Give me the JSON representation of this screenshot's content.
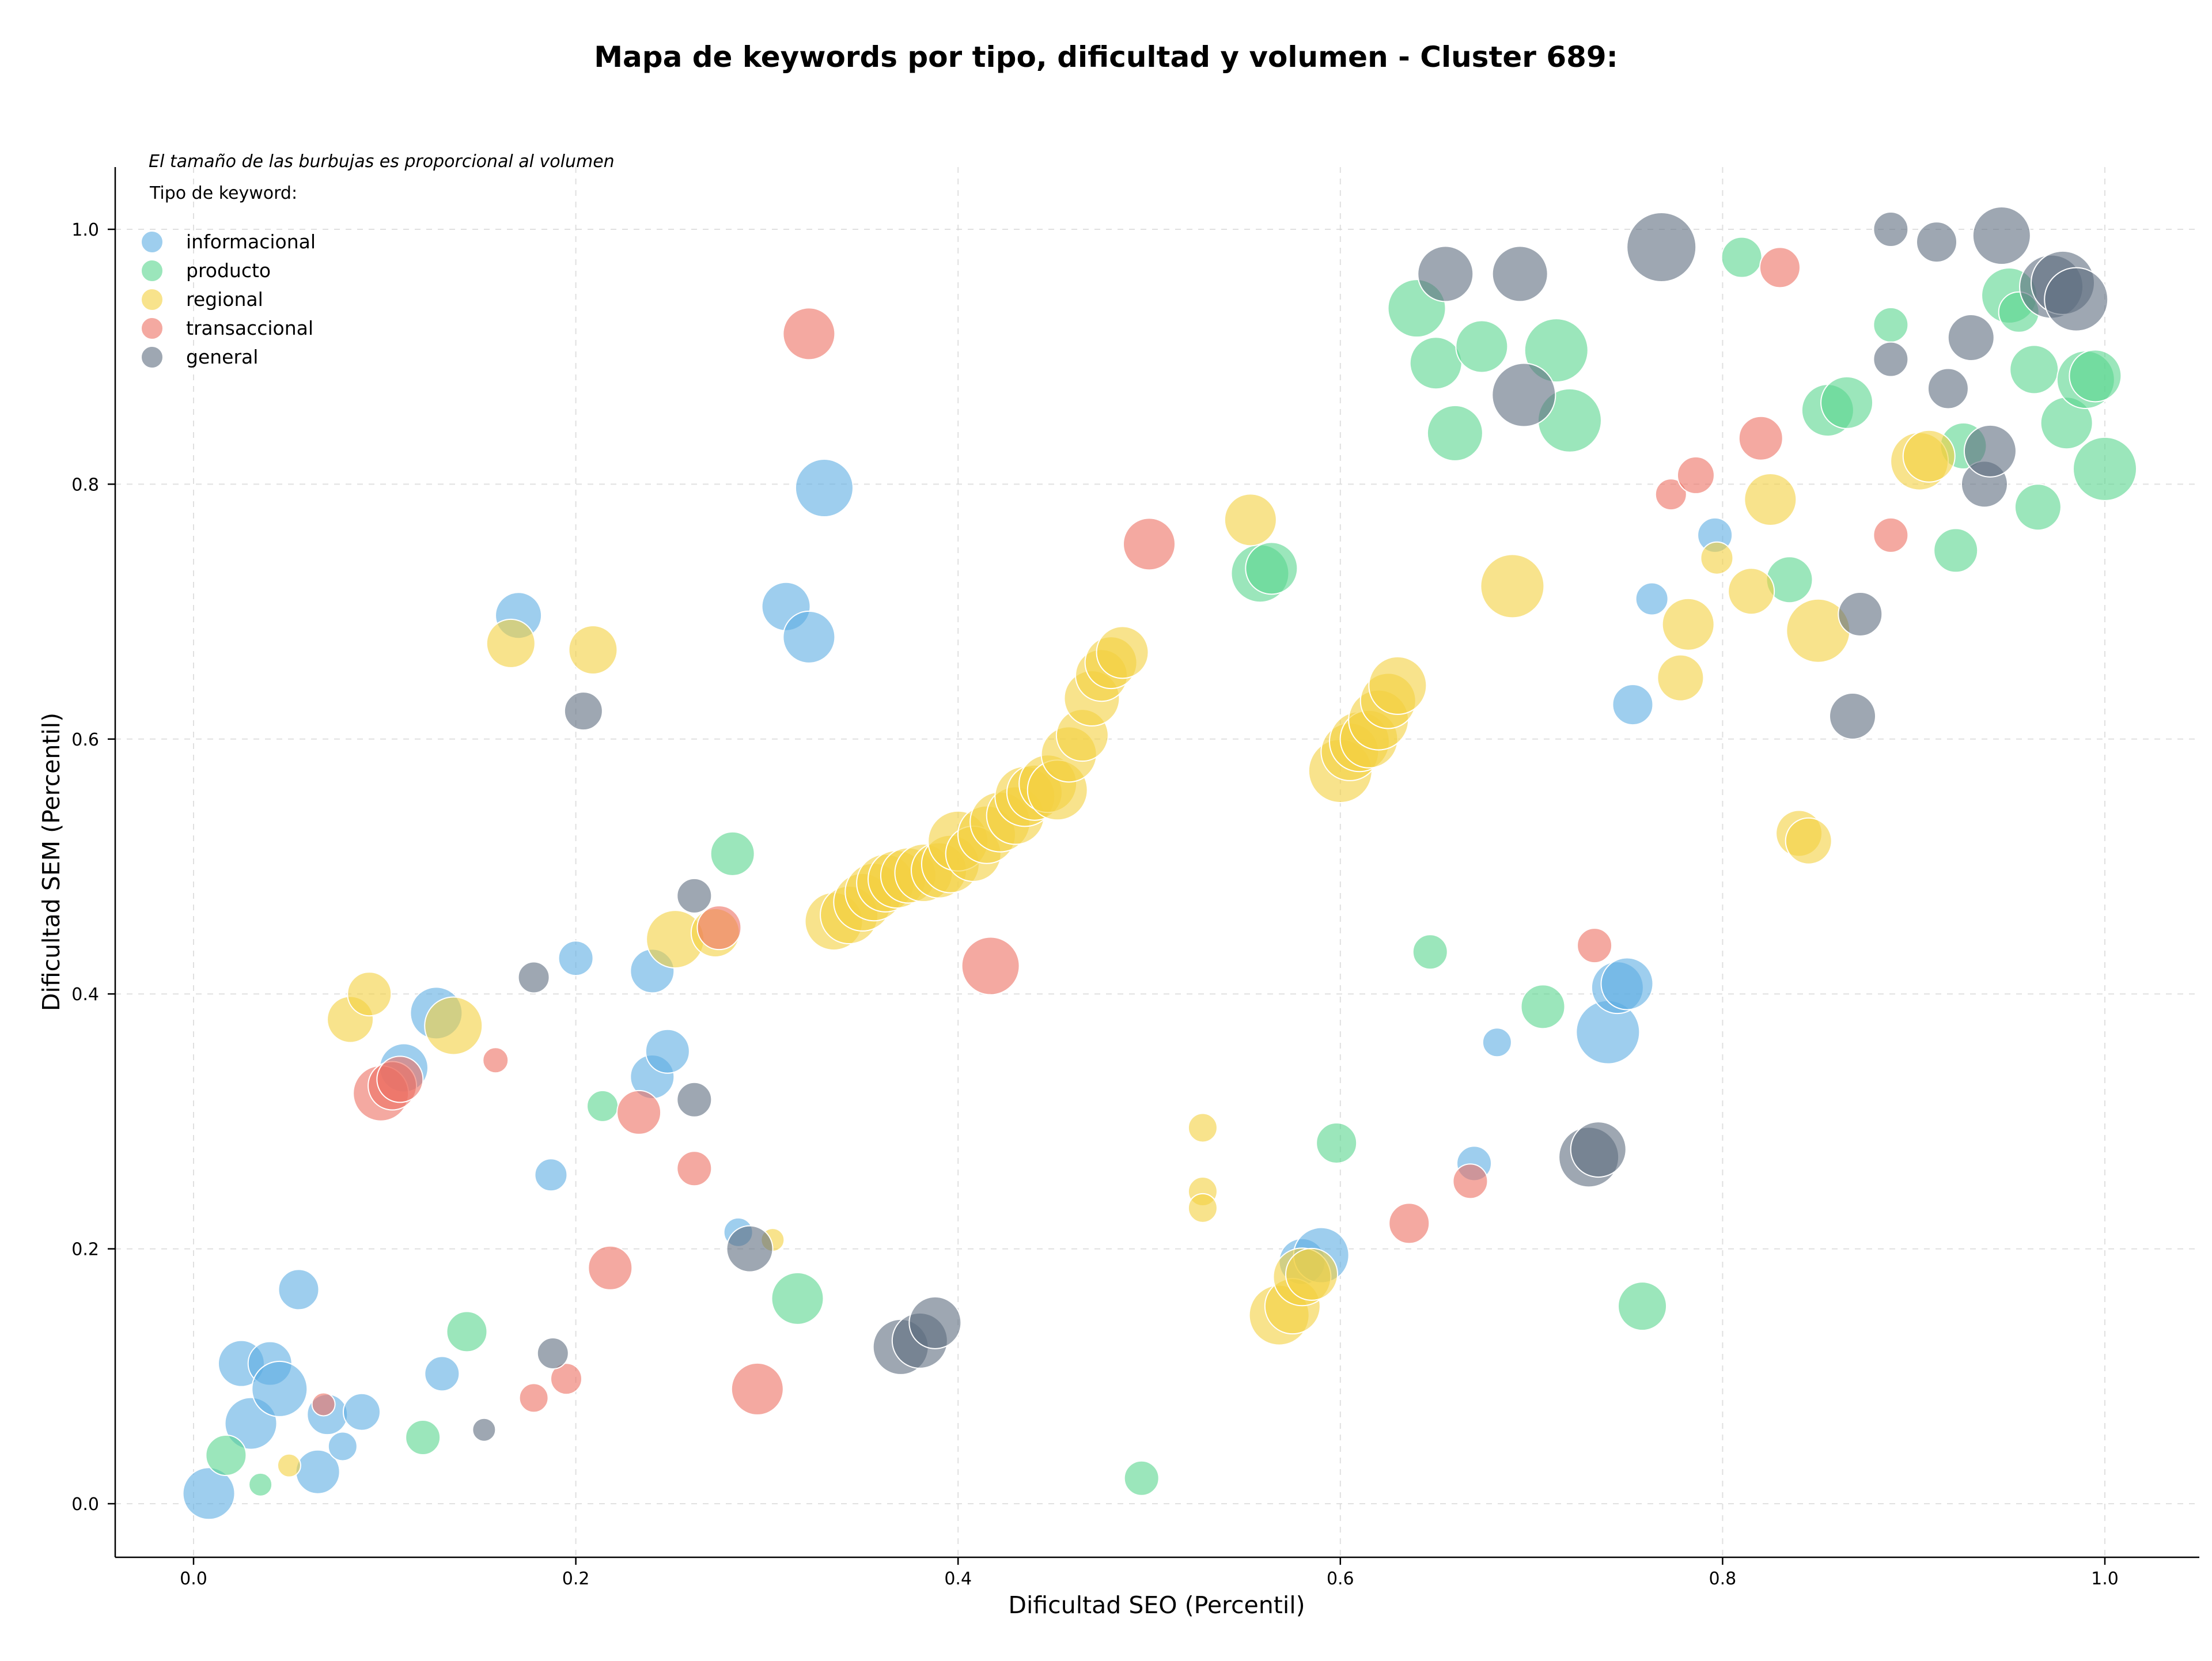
{
  "chart_data": {
    "type": "scatter",
    "title": "Mapa de keywords por tipo, dificultad y volumen - Cluster 689:",
    "xlabel": "Dificultad SEO (Percentil)",
    "ylabel": "Dificultad SEM (Percentil)",
    "xlim": [
      -0.04,
      1.05
    ],
    "ylim": [
      -0.04,
      1.05
    ],
    "xticks": [
      "0.0",
      "0.2",
      "0.4",
      "0.6",
      "0.8",
      "1.0"
    ],
    "yticks": [
      "0.0",
      "0.2",
      "0.4",
      "0.6",
      "0.8",
      "1.0"
    ],
    "grid": true,
    "note": "El tamaño de las burbujas es proporcional al volumen",
    "legend": {
      "title": "Tipo de keyword:",
      "position": "top-left",
      "entries": [
        "informacional",
        "producto",
        "regional",
        "transaccional",
        "general"
      ]
    },
    "series": [
      {
        "name": "informacional",
        "color": "#5dade2",
        "points": [
          [
            0.008,
            0.008,
            45
          ],
          [
            0.025,
            0.11,
            40
          ],
          [
            0.03,
            0.063,
            45
          ],
          [
            0.04,
            0.11,
            38
          ],
          [
            0.045,
            0.09,
            48
          ],
          [
            0.055,
            0.168,
            35
          ],
          [
            0.065,
            0.025,
            38
          ],
          [
            0.07,
            0.07,
            35
          ],
          [
            0.078,
            0.045,
            25
          ],
          [
            0.088,
            0.072,
            32
          ],
          [
            0.13,
            0.102,
            30
          ],
          [
            0.11,
            0.342,
            42
          ],
          [
            0.127,
            0.385,
            45
          ],
          [
            0.17,
            0.697,
            40
          ],
          [
            0.187,
            0.258,
            28
          ],
          [
            0.2,
            0.428,
            30
          ],
          [
            0.24,
            0.418,
            38
          ],
          [
            0.24,
            0.335,
            38
          ],
          [
            0.248,
            0.355,
            38
          ],
          [
            0.285,
            0.213,
            25
          ],
          [
            0.31,
            0.704,
            42
          ],
          [
            0.322,
            0.68,
            45
          ],
          [
            0.33,
            0.797,
            50
          ],
          [
            0.58,
            0.19,
            40
          ],
          [
            0.59,
            0.195,
            48
          ],
          [
            0.67,
            0.267,
            30
          ],
          [
            0.682,
            0.362,
            25
          ],
          [
            0.74,
            0.37,
            55
          ],
          [
            0.745,
            0.405,
            45
          ],
          [
            0.75,
            0.408,
            45
          ],
          [
            0.753,
            0.627,
            35
          ],
          [
            0.763,
            0.71,
            28
          ],
          [
            0.796,
            0.76,
            30
          ]
        ]
      },
      {
        "name": "producto",
        "color": "#58d68d",
        "points": [
          [
            0.017,
            0.038,
            35
          ],
          [
            0.035,
            0.015,
            20
          ],
          [
            0.12,
            0.052,
            30
          ],
          [
            0.143,
            0.135,
            35
          ],
          [
            0.214,
            0.312,
            27
          ],
          [
            0.282,
            0.51,
            38
          ],
          [
            0.316,
            0.161,
            45
          ],
          [
            0.496,
            0.02,
            30
          ],
          [
            0.558,
            0.73,
            50
          ],
          [
            0.564,
            0.734,
            45
          ],
          [
            0.598,
            0.283,
            35
          ],
          [
            0.64,
            0.938,
            50
          ],
          [
            0.65,
            0.895,
            45
          ],
          [
            0.66,
            0.84,
            48
          ],
          [
            0.674,
            0.908,
            45
          ],
          [
            0.647,
            0.433,
            30
          ],
          [
            0.706,
            0.39,
            38
          ],
          [
            0.713,
            0.905,
            55
          ],
          [
            0.72,
            0.85,
            55
          ],
          [
            0.758,
            0.155,
            42
          ],
          [
            0.81,
            0.978,
            35
          ],
          [
            0.835,
            0.725,
            40
          ],
          [
            0.855,
            0.858,
            45
          ],
          [
            0.865,
            0.864,
            45
          ],
          [
            0.888,
            0.925,
            30
          ],
          [
            0.922,
            0.748,
            38
          ],
          [
            0.926,
            0.83,
            40
          ],
          [
            0.95,
            0.948,
            48
          ],
          [
            0.955,
            0.935,
            35
          ],
          [
            0.963,
            0.89,
            42
          ],
          [
            0.965,
            0.782,
            40
          ],
          [
            0.98,
            0.848,
            45
          ],
          [
            0.99,
            0.882,
            50
          ],
          [
            0.995,
            0.885,
            45
          ],
          [
            1.0,
            0.812,
            55
          ]
        ]
      },
      {
        "name": "regional",
        "color": "#f4d03f",
        "points": [
          [
            0.05,
            0.03,
            20
          ],
          [
            0.082,
            0.38,
            40
          ],
          [
            0.092,
            0.4,
            38
          ],
          [
            0.136,
            0.375,
            50
          ],
          [
            0.166,
            0.675,
            42
          ],
          [
            0.209,
            0.67,
            42
          ],
          [
            0.252,
            0.443,
            50
          ],
          [
            0.273,
            0.448,
            42
          ],
          [
            0.303,
            0.207,
            20
          ],
          [
            0.335,
            0.457,
            50
          ],
          [
            0.343,
            0.462,
            50
          ],
          [
            0.35,
            0.472,
            50
          ],
          [
            0.356,
            0.48,
            50
          ],
          [
            0.362,
            0.487,
            50
          ],
          [
            0.368,
            0.49,
            50
          ],
          [
            0.374,
            0.493,
            48
          ],
          [
            0.382,
            0.495,
            50
          ],
          [
            0.39,
            0.497,
            48
          ],
          [
            0.396,
            0.502,
            50
          ],
          [
            0.4,
            0.52,
            52
          ],
          [
            0.408,
            0.51,
            48
          ],
          [
            0.415,
            0.525,
            50
          ],
          [
            0.422,
            0.535,
            52
          ],
          [
            0.43,
            0.54,
            50
          ],
          [
            0.435,
            0.555,
            52
          ],
          [
            0.44,
            0.558,
            48
          ],
          [
            0.447,
            0.565,
            50
          ],
          [
            0.452,
            0.56,
            52
          ],
          [
            0.458,
            0.588,
            48
          ],
          [
            0.465,
            0.603,
            45
          ],
          [
            0.47,
            0.632,
            48
          ],
          [
            0.475,
            0.65,
            45
          ],
          [
            0.48,
            0.66,
            45
          ],
          [
            0.486,
            0.668,
            45
          ],
          [
            0.528,
            0.295,
            25
          ],
          [
            0.528,
            0.245,
            25
          ],
          [
            0.528,
            0.232,
            25
          ],
          [
            0.553,
            0.772,
            45
          ],
          [
            0.568,
            0.148,
            52
          ],
          [
            0.575,
            0.155,
            48
          ],
          [
            0.58,
            0.178,
            50
          ],
          [
            0.585,
            0.18,
            45
          ],
          [
            0.6,
            0.575,
            55
          ],
          [
            0.605,
            0.59,
            50
          ],
          [
            0.61,
            0.598,
            52
          ],
          [
            0.615,
            0.6,
            50
          ],
          [
            0.62,
            0.615,
            52
          ],
          [
            0.625,
            0.63,
            48
          ],
          [
            0.63,
            0.642,
            50
          ],
          [
            0.69,
            0.72,
            55
          ],
          [
            0.778,
            0.648,
            40
          ],
          [
            0.782,
            0.69,
            45
          ],
          [
            0.797,
            0.742,
            28
          ],
          [
            0.815,
            0.716,
            40
          ],
          [
            0.825,
            0.788,
            45
          ],
          [
            0.84,
            0.526,
            40
          ],
          [
            0.845,
            0.52,
            40
          ],
          [
            0.85,
            0.685,
            55
          ],
          [
            0.903,
            0.818,
            50
          ],
          [
            0.908,
            0.822,
            45
          ]
        ]
      },
      {
        "name": "transaccional",
        "color": "#ec7063",
        "points": [
          [
            0.068,
            0.078,
            20
          ],
          [
            0.098,
            0.322,
            48
          ],
          [
            0.104,
            0.328,
            42
          ],
          [
            0.108,
            0.333,
            40
          ],
          [
            0.158,
            0.348,
            22
          ],
          [
            0.178,
            0.083,
            25
          ],
          [
            0.195,
            0.098,
            27
          ],
          [
            0.218,
            0.185,
            38
          ],
          [
            0.233,
            0.307,
            38
          ],
          [
            0.262,
            0.263,
            30
          ],
          [
            0.275,
            0.452,
            38
          ],
          [
            0.295,
            0.09,
            45
          ],
          [
            0.322,
            0.918,
            45
          ],
          [
            0.417,
            0.422,
            50
          ],
          [
            0.5,
            0.753,
            45
          ],
          [
            0.636,
            0.22,
            35
          ],
          [
            0.668,
            0.253,
            30
          ],
          [
            0.733,
            0.438,
            30
          ],
          [
            0.773,
            0.792,
            27
          ],
          [
            0.786,
            0.807,
            32
          ],
          [
            0.82,
            0.836,
            38
          ],
          [
            0.83,
            0.97,
            35
          ],
          [
            0.888,
            0.76,
            30
          ]
        ]
      },
      {
        "name": "general",
        "color": "#5d6d7e",
        "points": [
          [
            0.152,
            0.058,
            20
          ],
          [
            0.178,
            0.413,
            27
          ],
          [
            0.188,
            0.118,
            27
          ],
          [
            0.204,
            0.622,
            33
          ],
          [
            0.262,
            0.477,
            30
          ],
          [
            0.262,
            0.317,
            30
          ],
          [
            0.291,
            0.2,
            40
          ],
          [
            0.37,
            0.123,
            48
          ],
          [
            0.38,
            0.128,
            48
          ],
          [
            0.388,
            0.142,
            45
          ],
          [
            0.655,
            0.965,
            48
          ],
          [
            0.694,
            0.965,
            48
          ],
          [
            0.696,
            0.87,
            55
          ],
          [
            0.73,
            0.272,
            52
          ],
          [
            0.735,
            0.278,
            48
          ],
          [
            0.768,
            0.986,
            60
          ],
          [
            0.868,
            0.618,
            40
          ],
          [
            0.872,
            0.698,
            38
          ],
          [
            0.888,
            0.898,
            30
          ],
          [
            0.888,
            1.0,
            30
          ],
          [
            0.912,
            0.99,
            35
          ],
          [
            0.918,
            0.875,
            35
          ],
          [
            0.93,
            0.915,
            40
          ],
          [
            0.937,
            0.8,
            40
          ],
          [
            0.94,
            0.826,
            45
          ],
          [
            0.946,
            0.995,
            50
          ],
          [
            0.972,
            0.955,
            55
          ],
          [
            0.978,
            0.958,
            55
          ],
          [
            0.985,
            0.945,
            55
          ]
        ]
      }
    ]
  }
}
